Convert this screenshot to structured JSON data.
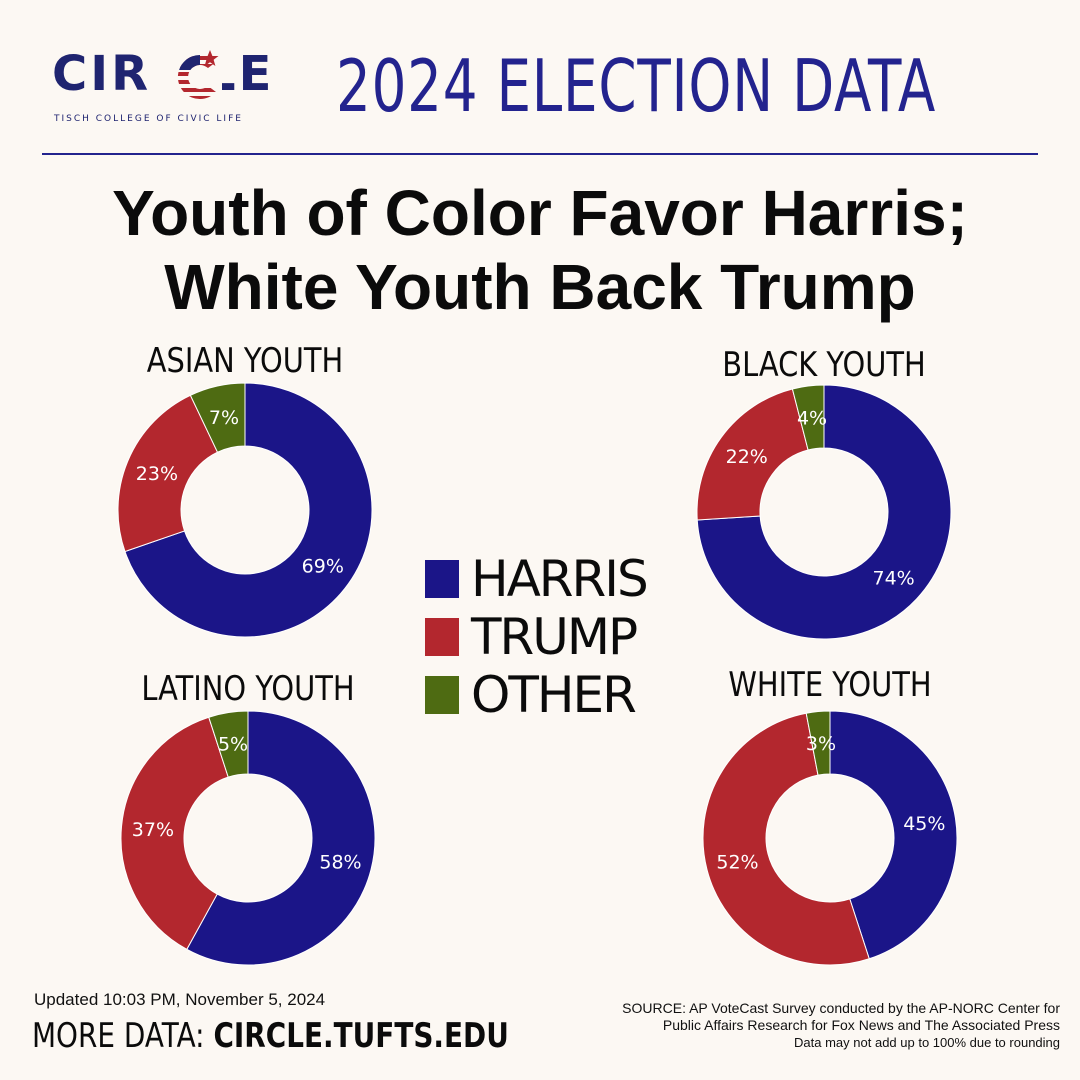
{
  "brand": {
    "logo_text": "CIRCLE",
    "logo_subtitle": "TISCH COLLEGE OF CIVIC LIFE"
  },
  "header": {
    "title": "2024 ELECTION DATA"
  },
  "headline": {
    "line1": "Youth of Color Favor Harris;",
    "line2": "White Youth Back Trump"
  },
  "colors": {
    "harris": "#1b1588",
    "trump": "#b3272e",
    "other": "#4e6b12",
    "title_blue": "#23238e",
    "background": "#fcf8f3"
  },
  "legend": [
    {
      "label": "HARRIS",
      "color": "#1b1588"
    },
    {
      "label": "TRUMP",
      "color": "#b3272e"
    },
    {
      "label": "OTHER",
      "color": "#4e6b12"
    }
  ],
  "chart_data": [
    {
      "type": "pie",
      "title": "ASIAN YOUTH",
      "categories": [
        "HARRIS",
        "TRUMP",
        "OTHER"
      ],
      "values": [
        69,
        23,
        7
      ],
      "labels": [
        "69%",
        "23%",
        "7%"
      ]
    },
    {
      "type": "pie",
      "title": "BLACK YOUTH",
      "categories": [
        "HARRIS",
        "TRUMP",
        "OTHER"
      ],
      "values": [
        74,
        22,
        4
      ],
      "labels": [
        "74%",
        "22%",
        "4%"
      ]
    },
    {
      "type": "pie",
      "title": "LATINO YOUTH",
      "categories": [
        "HARRIS",
        "TRUMP",
        "OTHER"
      ],
      "values": [
        58,
        37,
        5
      ],
      "labels": [
        "58%",
        "37%",
        "5%"
      ]
    },
    {
      "type": "pie",
      "title": "WHITE YOUTH",
      "categories": [
        "HARRIS",
        "TRUMP",
        "OTHER"
      ],
      "values": [
        45,
        52,
        3
      ],
      "labels": [
        "45%",
        "52%",
        "3%"
      ]
    }
  ],
  "footer": {
    "updated": "Updated 10:03 PM, November 5, 2024",
    "more_label": "MORE DATA:",
    "more_url": "CIRCLE.TUFTS.EDU",
    "source_line1": "SOURCE: AP VoteCast Survey conducted by the AP-NORC Center for",
    "source_line2": "Public Affairs Research for Fox News and The Associated Press",
    "note": "Data may not add up to 100% due to rounding"
  }
}
